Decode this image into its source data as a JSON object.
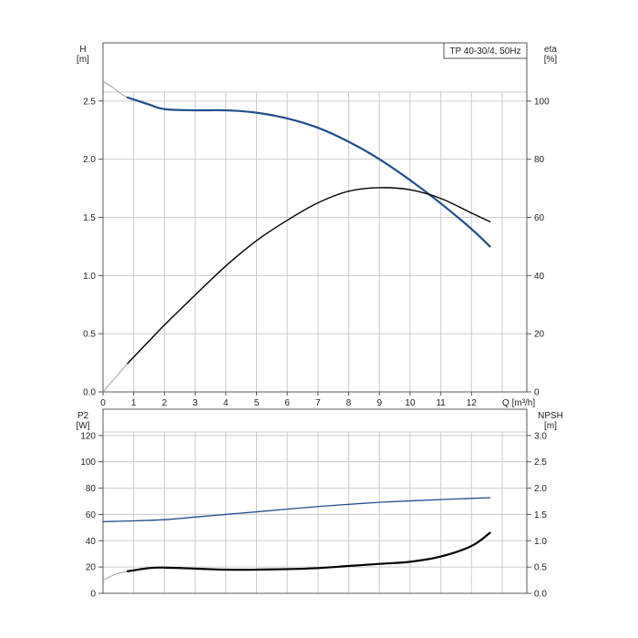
{
  "chart_data": [
    {
      "type": "line",
      "title": "TP 40-30/4, 50Hz",
      "xlabel": "Q [m³/h]",
      "ylabel_left": [
        "H",
        "[m]"
      ],
      "ylabel_right": [
        "eta",
        "[%]"
      ],
      "xlim": [
        0,
        13.8
      ],
      "ylim_left": [
        0,
        3.0
      ],
      "ylim_right": [
        0,
        120
      ],
      "x_ticks": [
        "0",
        "1",
        "2",
        "3",
        "4",
        "5",
        "6",
        "7",
        "8",
        "9",
        "10",
        "11",
        "12"
      ],
      "y_left_ticks": [
        "0.0",
        "0.5",
        "1.0",
        "1.5",
        "2.0",
        "2.5"
      ],
      "y_right_ticks": [
        "0",
        "20",
        "40",
        "60",
        "80",
        "100"
      ],
      "grid": true,
      "series": [
        {
          "axis": "left",
          "color": "#1f4e8c",
          "extrapolated": {
            "x": [
              0,
              0.3,
              0.6,
              0.8
            ],
            "y": [
              2.67,
              2.62,
              2.56,
              2.53
            ]
          },
          "x": [
            0.8,
            1.5,
            2,
            3,
            4,
            5,
            6,
            7,
            8,
            9,
            10,
            11,
            12,
            12.6
          ],
          "y": [
            2.53,
            2.47,
            2.43,
            2.42,
            2.42,
            2.4,
            2.35,
            2.27,
            2.15,
            2.0,
            1.82,
            1.62,
            1.4,
            1.25
          ]
        },
        {
          "axis": "right",
          "color": "#000000",
          "extrapolated": {
            "x": [
              0,
              0.4,
              0.8
            ],
            "y": [
              0,
              4.9,
              9.8
            ]
          },
          "x": [
            0.8,
            1.5,
            2,
            3,
            4,
            5,
            6,
            7,
            8,
            9,
            10,
            11,
            12,
            12.6
          ],
          "y": [
            9.8,
            17.5,
            23,
            33.3,
            43.3,
            52,
            59,
            65,
            69,
            70.2,
            69.5,
            66.5,
            61.5,
            58.5
          ]
        }
      ]
    },
    {
      "type": "line",
      "xlabel": "",
      "ylabel_left": [
        "P2",
        "[W]"
      ],
      "ylabel_right": [
        "NPSH",
        "[m]"
      ],
      "xlim": [
        0,
        13.8
      ],
      "ylim_left": [
        0,
        140
      ],
      "ylim_right": [
        0,
        3.5
      ],
      "y_left_ticks": [
        "0",
        "20",
        "40",
        "60",
        "80",
        "100",
        "120"
      ],
      "y_right_ticks": [
        "0.0",
        "0.5",
        "1.0",
        "1.5",
        "2.0",
        "2.5",
        "3.0"
      ],
      "grid": true,
      "series": [
        {
          "axis": "left",
          "color": "#1f4e8c",
          "x": [
            0,
            0.8,
            2,
            3,
            4,
            5,
            6,
            7,
            8,
            9,
            10,
            11,
            12,
            12.6
          ],
          "y": [
            54.5,
            55,
            56,
            58,
            60,
            62,
            64,
            66,
            67.7,
            69.2,
            70.3,
            71.3,
            72.2,
            72.7
          ]
        },
        {
          "axis": "right",
          "color": "#000000",
          "extrapolated": {
            "x": [
              0,
              0.4,
              0.8
            ],
            "y": [
              0.25,
              0.36,
              0.42
            ]
          },
          "x": [
            0.8,
            1.5,
            2,
            3,
            4,
            5,
            6,
            7,
            8,
            9,
            10,
            11,
            12,
            12.6
          ],
          "y": [
            0.42,
            0.48,
            0.49,
            0.47,
            0.45,
            0.45,
            0.46,
            0.48,
            0.52,
            0.56,
            0.6,
            0.7,
            0.9,
            1.15
          ]
        }
      ]
    }
  ]
}
